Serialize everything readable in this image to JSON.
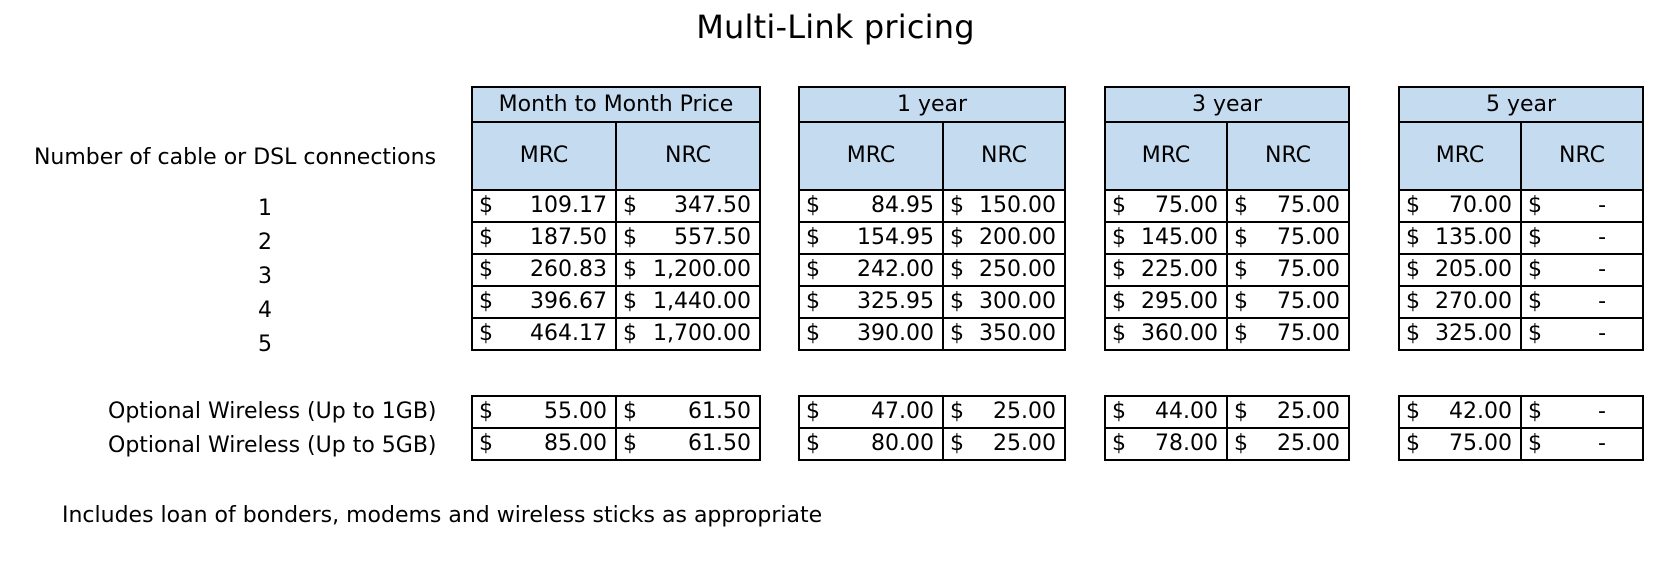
{
  "title": "Multi-Link pricing",
  "row_header": "Number of cable or DSL connections",
  "rows": [
    "1",
    "2",
    "3",
    "4",
    "5"
  ],
  "wireless_rows": [
    "Optional Wireless (Up to 1GB)",
    "Optional Wireless (Up to 5GB)"
  ],
  "footer": "Includes loan of bonders, modems and wireless sticks as appropriate",
  "currency": "$",
  "header_color": "#c5dbef",
  "terms": [
    {
      "label": "Month to Month Price",
      "mrc_label": "MRC",
      "nrc_label": "NRC",
      "rows": [
        [
          "109.17",
          "347.50"
        ],
        [
          "187.50",
          "557.50"
        ],
        [
          "260.83",
          "1,200.00"
        ],
        [
          "396.67",
          "1,440.00"
        ],
        [
          "464.17",
          "1,700.00"
        ]
      ],
      "wireless": [
        [
          "55.00",
          "61.50"
        ],
        [
          "85.00",
          "61.50"
        ]
      ]
    },
    {
      "label": "1 year",
      "mrc_label": "MRC",
      "nrc_label": "NRC",
      "rows": [
        [
          "84.95",
          "150.00"
        ],
        [
          "154.95",
          "200.00"
        ],
        [
          "242.00",
          "250.00"
        ],
        [
          "325.95",
          "300.00"
        ],
        [
          "390.00",
          "350.00"
        ]
      ],
      "wireless": [
        [
          "47.00",
          "25.00"
        ],
        [
          "80.00",
          "25.00"
        ]
      ]
    },
    {
      "label": "3 year",
      "mrc_label": "MRC",
      "nrc_label": "NRC",
      "rows": [
        [
          "75.00",
          "75.00"
        ],
        [
          "145.00",
          "75.00"
        ],
        [
          "225.00",
          "75.00"
        ],
        [
          "295.00",
          "75.00"
        ],
        [
          "360.00",
          "75.00"
        ]
      ],
      "wireless": [
        [
          "44.00",
          "25.00"
        ],
        [
          "78.00",
          "25.00"
        ]
      ]
    },
    {
      "label": "5 year",
      "mrc_label": "MRC",
      "nrc_label": "NRC",
      "rows": [
        [
          "70.00",
          "-"
        ],
        [
          "135.00",
          "-"
        ],
        [
          "205.00",
          "-"
        ],
        [
          "270.00",
          "-"
        ],
        [
          "325.00",
          "-"
        ]
      ],
      "wireless": [
        [
          "42.00",
          "-"
        ],
        [
          "75.00",
          "-"
        ]
      ]
    }
  ]
}
